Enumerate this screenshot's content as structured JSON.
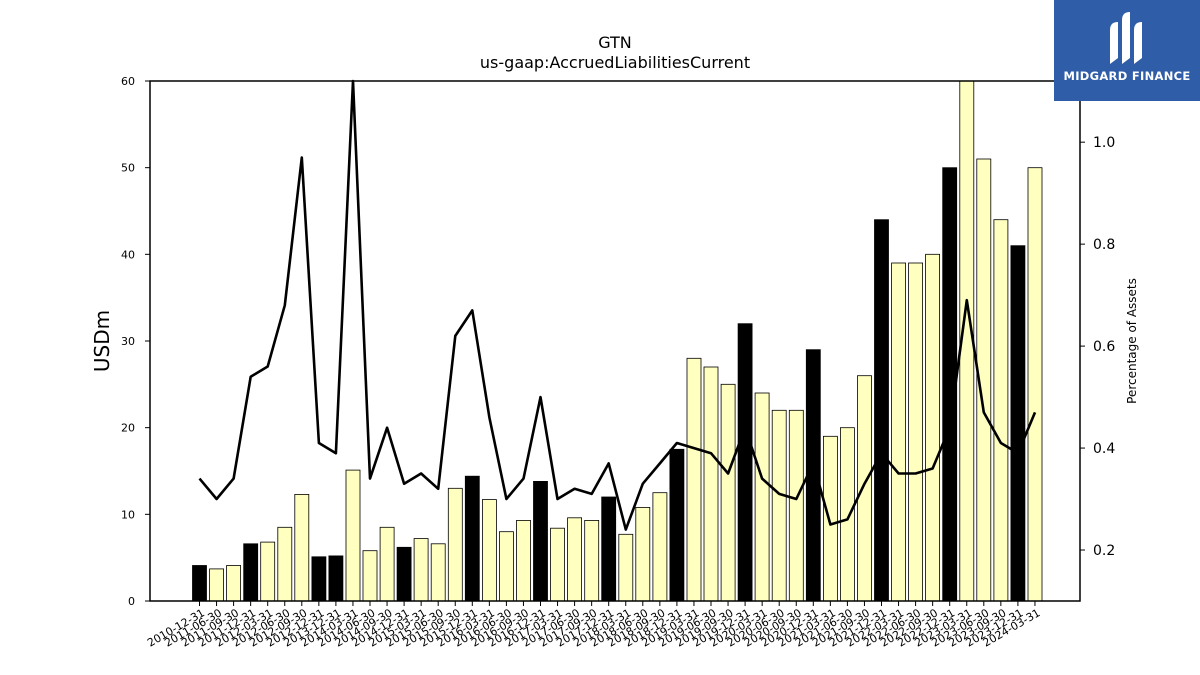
{
  "chart_data": {
    "type": "bar",
    "title": "GTN",
    "subtitle": "us-gaap:AccruedLiabilitiesCurrent",
    "ylabel": "USDm",
    "y2label": "Percentage of Assets",
    "ylim": [
      0,
      60
    ],
    "y2lim": [
      0.1,
      1.12
    ],
    "yticks": [
      0,
      10,
      20,
      30,
      40,
      50,
      60
    ],
    "y2ticks": [
      0.2,
      0.4,
      0.6,
      0.8,
      1.0
    ],
    "categories": [
      "2010-12-31",
      "2011-06-30",
      "2011-09-30",
      "2011-12-31",
      "2012-03-31",
      "2012-06-30",
      "2012-09-30",
      "2012-12-31",
      "2013-12-31",
      "2014-03-31",
      "2014-06-30",
      "2014-09-30",
      "2014-12-31",
      "2015-03-31",
      "2015-06-30",
      "2015-09-30",
      "2015-12-31",
      "2016-03-31",
      "2016-06-30",
      "2016-09-30",
      "2016-12-31",
      "2017-03-31",
      "2017-06-30",
      "2017-09-30",
      "2017-12-31",
      "2018-03-31",
      "2018-06-30",
      "2018-09-30",
      "2018-12-31",
      "2019-03-31",
      "2019-06-30",
      "2019-09-30",
      "2019-12-31",
      "2020-03-31",
      "2020-06-30",
      "2020-09-30",
      "2020-12-31",
      "2021-03-31",
      "2021-06-30",
      "2021-09-30",
      "2021-12-31",
      "2022-03-31",
      "2022-06-30",
      "2022-09-30",
      "2022-12-31",
      "2023-03-31",
      "2023-06-30",
      "2023-09-30",
      "2023-12-31",
      "2024-03-31"
    ],
    "series": [
      {
        "type": "bar",
        "values": [
          4.1,
          3.7,
          4.1,
          6.6,
          6.8,
          8.5,
          12.3,
          5.1,
          5.2,
          15.1,
          5.8,
          8.5,
          6.2,
          7.2,
          6.6,
          13.0,
          14.4,
          11.7,
          8.0,
          9.3,
          13.8,
          8.4,
          9.6,
          9.3,
          12.0,
          7.7,
          10.8,
          12.5,
          17.5,
          28.0,
          27.0,
          25.0,
          32.0,
          24.0,
          22.0,
          22.0,
          29.0,
          19.0,
          20.0,
          26.0,
          44.0,
          39.0,
          39.0,
          40.0,
          50.0,
          60.5,
          51.0,
          44.0,
          41.0,
          50.0
        ],
        "highlight": [
          true,
          false,
          false,
          true,
          false,
          false,
          false,
          true,
          true,
          false,
          false,
          false,
          true,
          false,
          false,
          false,
          true,
          false,
          false,
          false,
          true,
          false,
          false,
          false,
          true,
          false,
          false,
          false,
          true,
          false,
          false,
          false,
          true,
          false,
          false,
          false,
          true,
          false,
          false,
          false,
          true,
          false,
          false,
          false,
          true,
          false,
          false,
          false,
          true,
          false
        ]
      },
      {
        "type": "line",
        "axis": "right",
        "values": [
          0.34,
          0.3,
          0.34,
          0.54,
          0.56,
          0.68,
          0.97,
          0.41,
          0.39,
          1.15,
          0.34,
          0.44,
          0.33,
          0.35,
          0.32,
          0.62,
          0.67,
          0.46,
          0.3,
          0.34,
          0.5,
          0.3,
          0.32,
          0.31,
          0.37,
          0.24,
          0.33,
          0.37,
          0.41,
          0.4,
          0.39,
          0.35,
          0.44,
          0.34,
          0.31,
          0.3,
          0.37,
          0.25,
          0.26,
          0.33,
          0.39,
          0.35,
          0.35,
          0.36,
          0.44,
          0.69,
          0.47,
          0.41,
          0.39,
          0.47
        ]
      }
    ],
    "colors": {
      "bar_highlight": "#000000",
      "bar_normal": "#ffffc0",
      "bar_edge": "#000000",
      "line": "#000000"
    },
    "grid": false
  },
  "logo": {
    "text": "MIDGARD FINANCE",
    "background": "#2f5da8"
  }
}
